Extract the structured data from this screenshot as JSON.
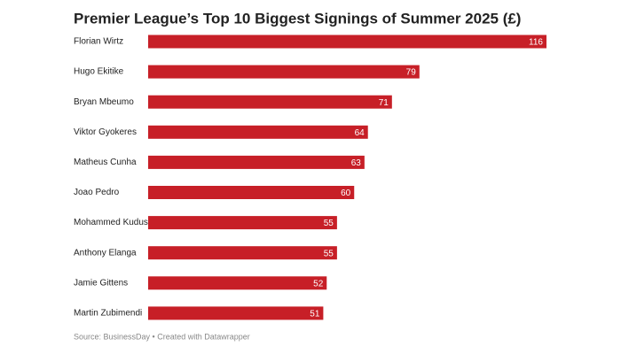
{
  "chart_data": {
    "type": "bar",
    "orientation": "horizontal",
    "title": "Premier League’s Top 10 Biggest Signings of Summer 2025 (£)",
    "categories": [
      "Florian Wirtz",
      "Hugo Ekitike",
      "Bryan Mbeumo",
      "Viktor Gyokeres",
      "Matheus Cunha",
      "Joao Pedro",
      "Mohammed Kudus",
      "Anthony Elanga",
      "Jamie Gittens",
      "Martin Zubimendi"
    ],
    "values": [
      116,
      79,
      71,
      64,
      63,
      60,
      55,
      55,
      52,
      51
    ],
    "color": "#c71f27",
    "source": "Source: BusinessDay • Created with Datawrapper"
  }
}
